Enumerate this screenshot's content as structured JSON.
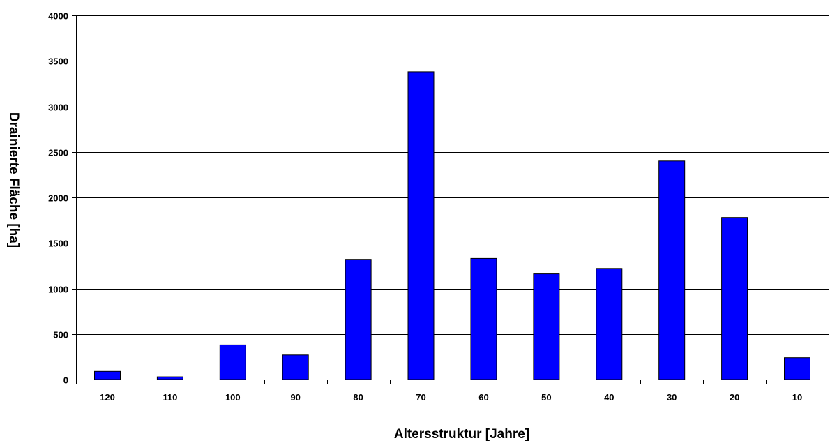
{
  "chart_data": {
    "type": "bar",
    "title": "",
    "xlabel": "Altersstruktur [Jahre]",
    "ylabel": "Drainierte Fläche [ha]",
    "categories": [
      "120",
      "110",
      "100",
      "90",
      "80",
      "70",
      "60",
      "50",
      "40",
      "30",
      "20",
      "10"
    ],
    "values": [
      90,
      30,
      380,
      270,
      1320,
      3380,
      1330,
      1160,
      1220,
      2400,
      1780,
      240
    ],
    "ylim": [
      0,
      4000
    ],
    "yticks": [
      0,
      500,
      1000,
      1500,
      2000,
      2500,
      3000,
      3500,
      4000
    ],
    "grid": "horizontal",
    "bar_color": "#0000ff",
    "bar_edge_color": "#000000"
  }
}
